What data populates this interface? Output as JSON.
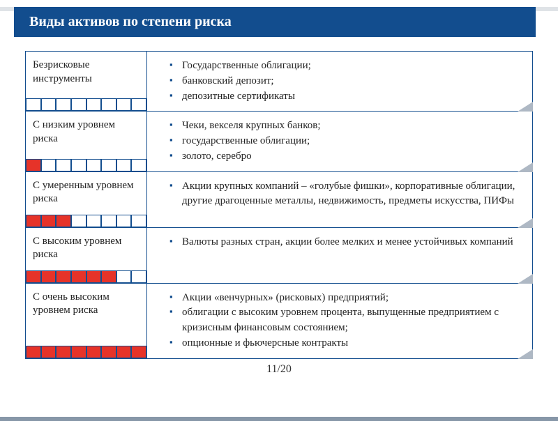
{
  "title": "Виды активов по степени риска",
  "page_indicator": "11/20",
  "colors": {
    "header_bg": "#124d8e",
    "header_text": "#ffffff",
    "border": "#124d8e",
    "bullet": "#124d8e",
    "risk_fill": "#e63329",
    "text": "#222222",
    "notch": "#aeb8c4",
    "background": "#ffffff"
  },
  "risk_bar": {
    "segments": 8
  },
  "rows": [
    {
      "label": "Безрисковые инструменты",
      "risk_filled": 0,
      "items": [
        "Государственные облигации;",
        "банковский депозит;",
        "депозитные сертификаты"
      ]
    },
    {
      "label": "С низким уровнем риска",
      "risk_filled": 1,
      "items": [
        "Чеки, векселя крупных банков;",
        "государственные облигации;",
        "золото, серебро"
      ]
    },
    {
      "label": "С умеренным уровнем риска",
      "risk_filled": 3,
      "items": [
        "Акции крупных компаний – «голубые фишки», корпоративные облигации, другие драгоценные металлы, недвижимость, предметы искусства, ПИФы"
      ]
    },
    {
      "label": "С высоким уровнем риска",
      "risk_filled": 6,
      "items": [
        "Валюты разных стран, акции более мелких и менее устойчивых компаний"
      ]
    },
    {
      "label": "С очень высоким уровнем риска",
      "risk_filled": 8,
      "items": [
        "Акции «венчурных» (рисковых) предприятий;",
        "облигации с высоким уровнем процента, выпущенные предприятием с кризисным финансовым состоянием;",
        "опционные и фьючерсные контракты"
      ]
    }
  ]
}
